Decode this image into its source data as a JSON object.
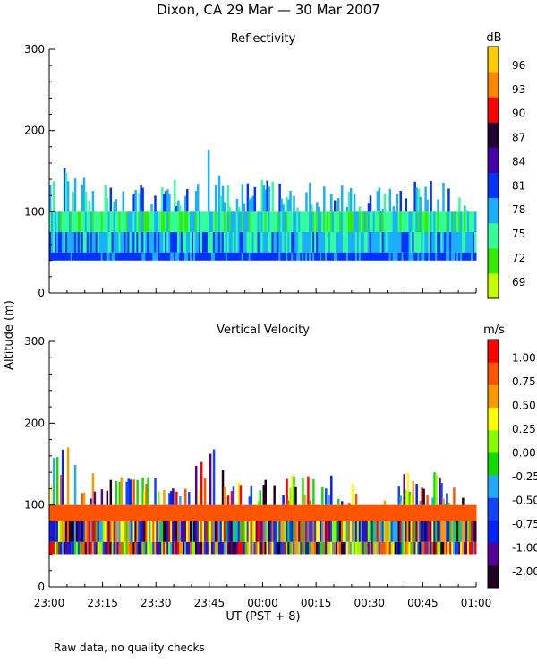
{
  "title": "Dixon, CA 29 Mar — 30 Mar 2007",
  "ylabel": "Altitude (m)",
  "xlabel": "UT (PST + 8)",
  "footnote": "Raw data, no quality checks",
  "colors": {
    "reflectivity_scale": [
      "#c8ff00",
      "#33ee00",
      "#33ff99",
      "#1ab0ff",
      "#0033ff",
      "#4400aa",
      "#220033",
      "#ff0000",
      "#ff8800",
      "#ffcc00"
    ],
    "velocity_scale": [
      "#220022",
      "#550099",
      "#0022ff",
      "#1144ff",
      "#22aaff",
      "#11dd00",
      "#88ff00",
      "#ffff00",
      "#ff9900",
      "#ff5500",
      "#ff0000"
    ]
  },
  "chart_data": [
    {
      "type": "heatmap",
      "title": "Reflectivity",
      "colorbar_unit": "dB",
      "colorbar_labels": [
        "96",
        "93",
        "90",
        "87",
        "84",
        "81",
        "78",
        "75",
        "72",
        "69"
      ],
      "x_ticks": [
        "23:00",
        "23:15",
        "23:30",
        "23:45",
        "00:00",
        "00:15",
        "00:30",
        "00:45",
        "01:00"
      ],
      "y_ticks": [
        "300",
        "200",
        "100",
        "0"
      ],
      "xlim": [
        "23:00",
        "01:00"
      ],
      "ylim": [
        0,
        300
      ],
      "data_range_m": [
        40,
        180
      ],
      "echo_top_m": {
        "x": [
          "23:00",
          "23:05",
          "23:10",
          "23:15",
          "23:20",
          "23:30",
          "23:35",
          "23:40",
          "23:45",
          "23:50",
          "00:00",
          "00:05",
          "00:10",
          "00:15",
          "00:20",
          "00:30",
          "00:35",
          "00:40",
          "00:45",
          "00:50",
          "01:00"
        ],
        "y": [
          160,
          180,
          140,
          140,
          140,
          140,
          140,
          140,
          180,
          140,
          140,
          140,
          140,
          140,
          140,
          120,
          140,
          140,
          140,
          140,
          100
        ]
      }
    },
    {
      "type": "heatmap",
      "title": "Vertical Velocity",
      "colorbar_unit": "m/s",
      "colorbar_labels": [
        "1.00",
        "0.75",
        "0.50",
        "0.25",
        "0.00",
        "-0.25",
        "-0.50",
        "-0.75",
        "-1.00",
        "-2.00"
      ],
      "x_ticks": [
        "23:00",
        "23:15",
        "23:30",
        "23:45",
        "00:00",
        "00:15",
        "00:30",
        "00:45",
        "01:00"
      ],
      "y_ticks": [
        "300",
        "200",
        "100",
        "0"
      ],
      "xlim": [
        "23:00",
        "01:00"
      ],
      "ylim": [
        0,
        300
      ],
      "data_range_m": [
        40,
        180
      ]
    }
  ]
}
